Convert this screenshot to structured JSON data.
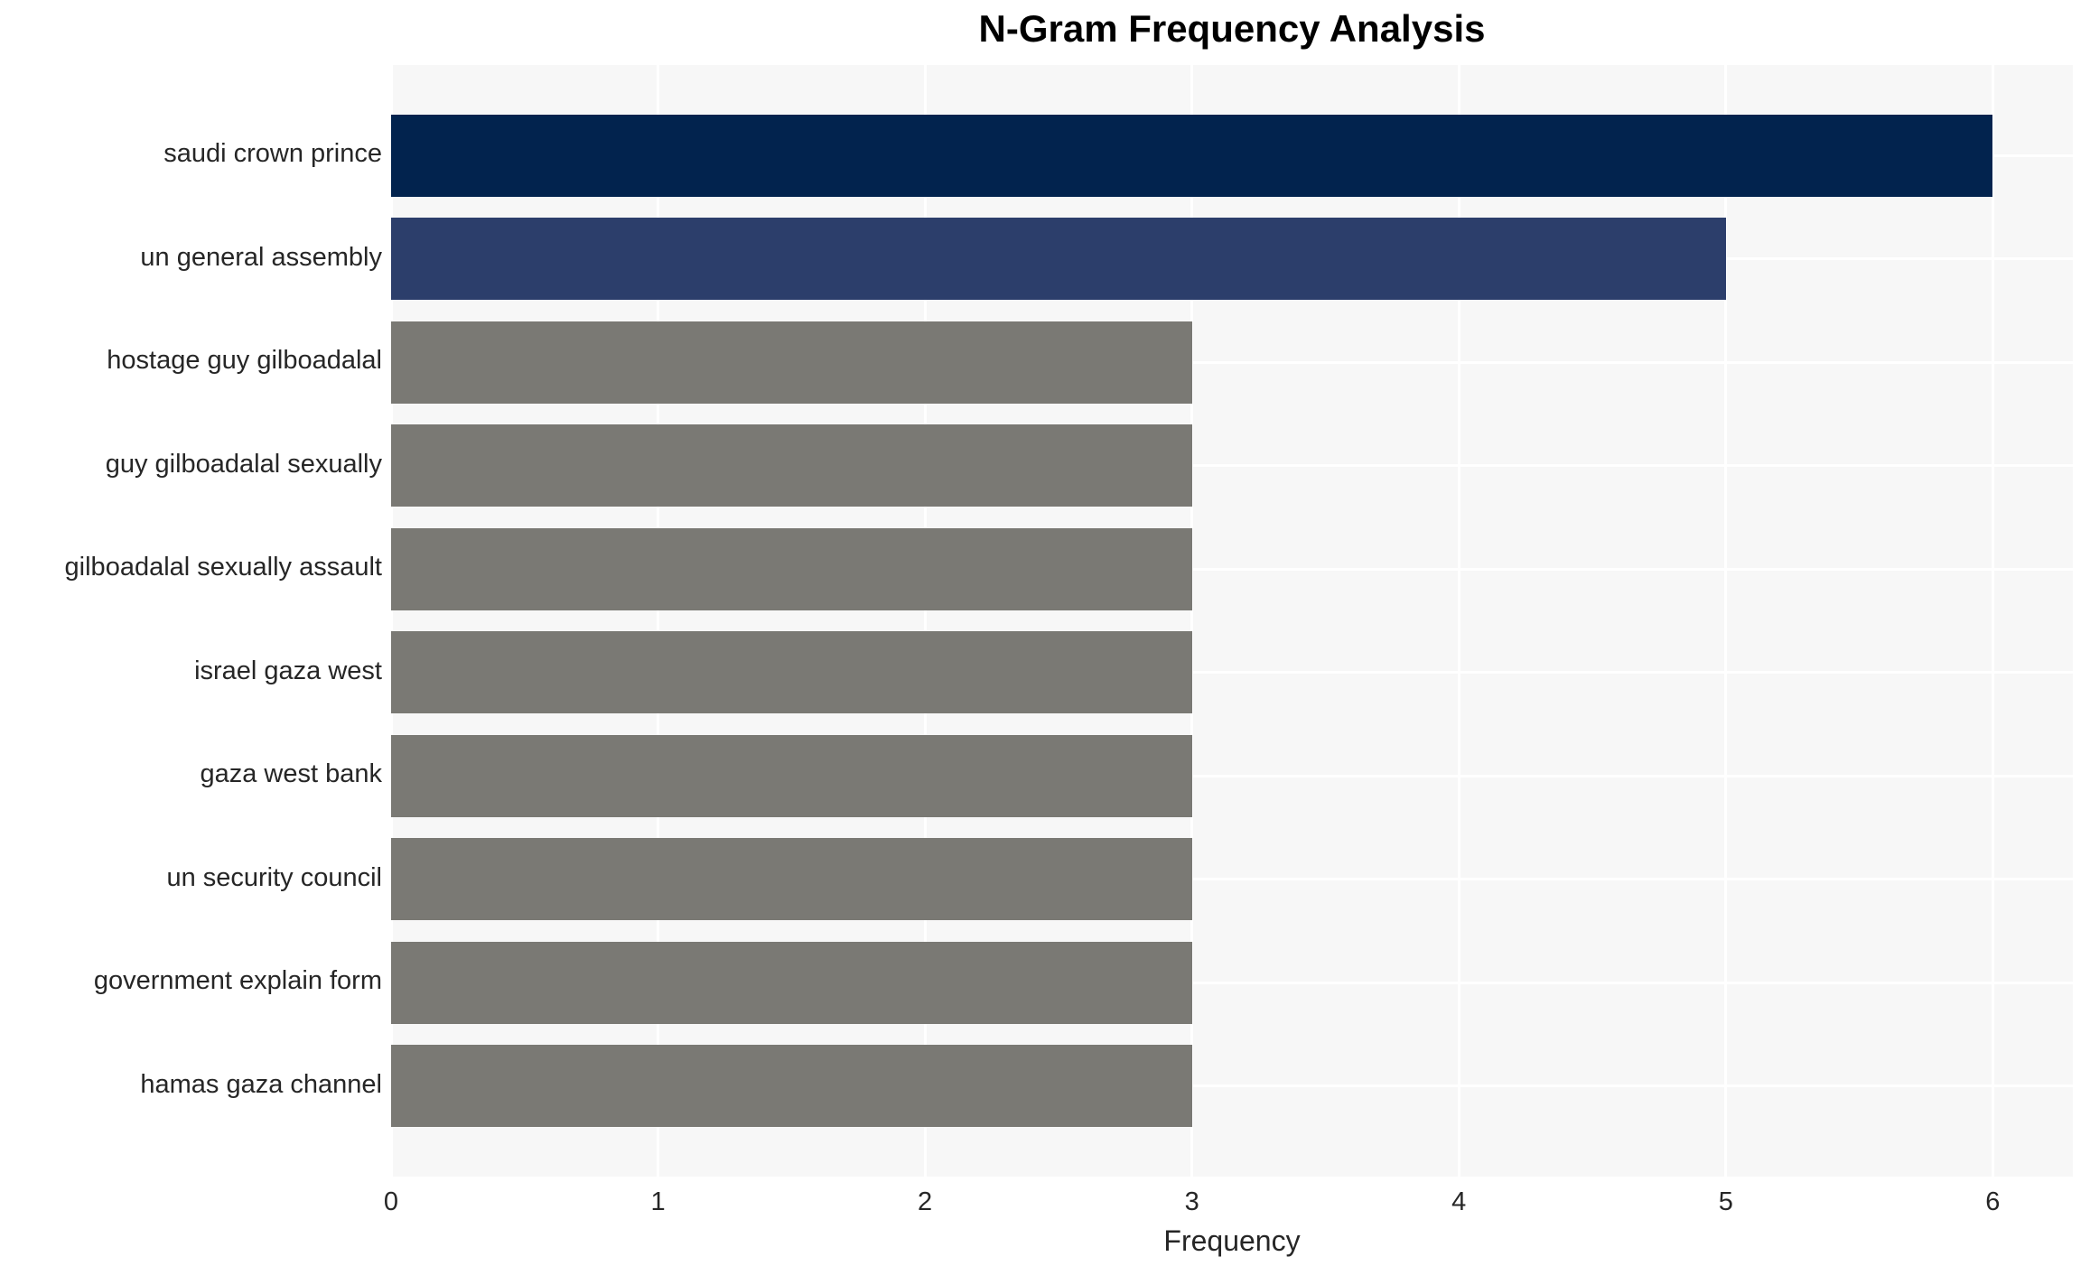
{
  "chart_data": {
    "type": "bar",
    "orientation": "horizontal",
    "title": "N-Gram Frequency Analysis",
    "xlabel": "Frequency",
    "ylabel": "",
    "categories": [
      "saudi crown prince",
      "un general assembly",
      "hostage guy gilboadalal",
      "guy gilboadalal sexually",
      "gilboadalal sexually assault",
      "israel gaza west",
      "gaza west bank",
      "un security council",
      "government explain form",
      "hamas gaza channel"
    ],
    "values": [
      6,
      5,
      3,
      3,
      3,
      3,
      3,
      3,
      3,
      3
    ],
    "bar_colors": [
      "#02234e",
      "#2c3e6b",
      "#7a7974",
      "#7a7974",
      "#7a7974",
      "#7a7974",
      "#7a7974",
      "#7a7974",
      "#7a7974",
      "#7a7974"
    ],
    "xticks": [
      0,
      1,
      2,
      3,
      4,
      5,
      6
    ],
    "xlim": [
      0,
      6.3
    ],
    "grid": true,
    "legend": "none",
    "plot_background": "#f7f7f7",
    "gridline_color": "#ffffff",
    "text_color": "#262626"
  }
}
